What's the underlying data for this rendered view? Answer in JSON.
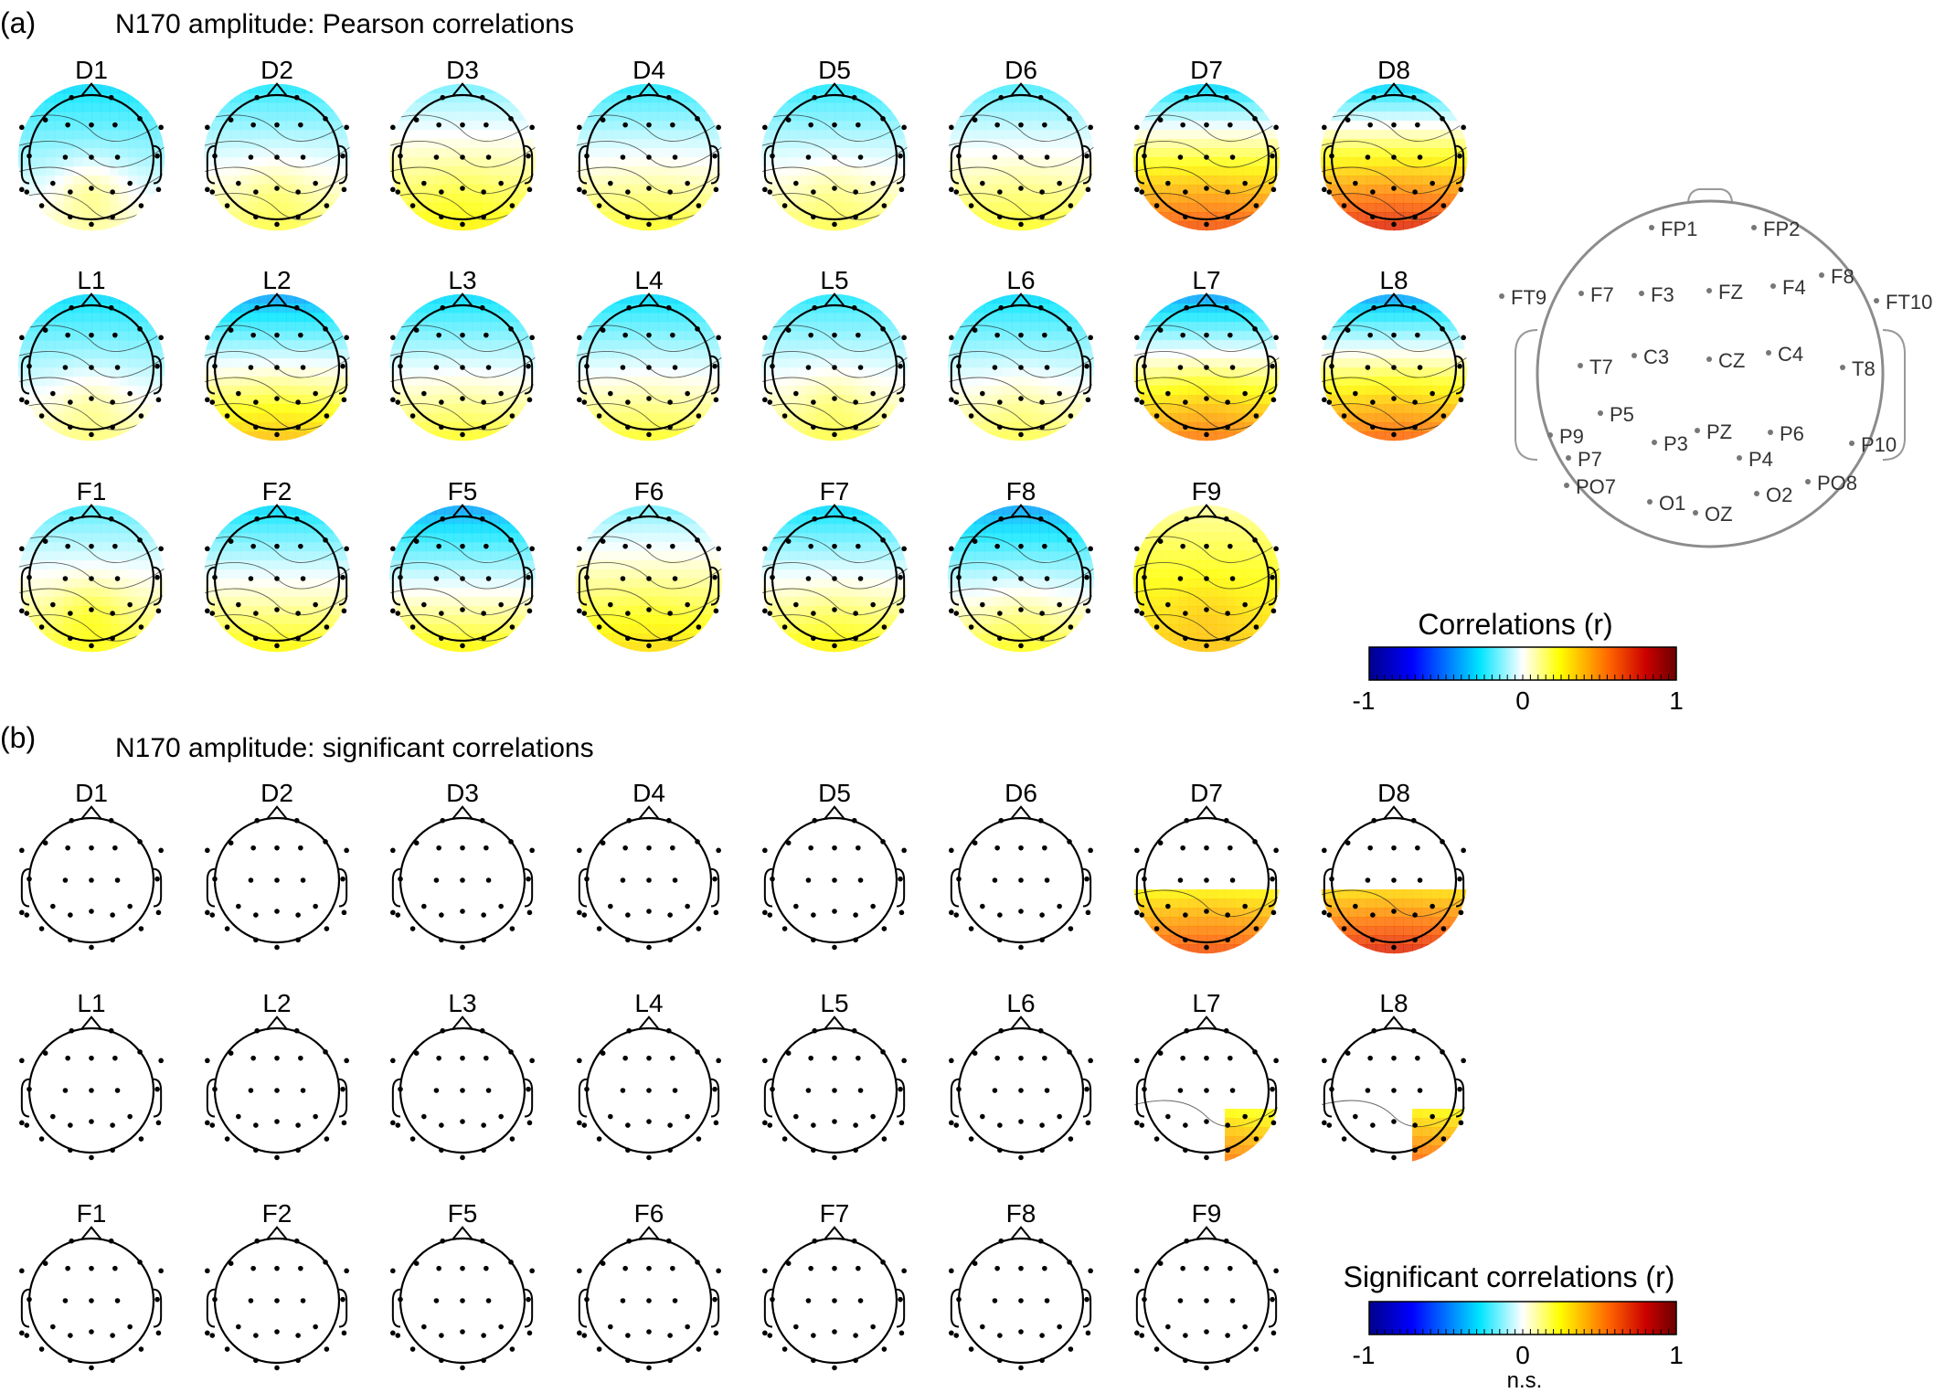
{
  "figure": {
    "panels": [
      {
        "id": "a",
        "label": "(a)",
        "title": "N170 amplitude: Pearson correlations",
        "rows": [
          [
            "D1",
            "D2",
            "D3",
            "D4",
            "D5",
            "D6",
            "D7",
            "D8"
          ],
          [
            "L1",
            "L2",
            "L3",
            "L4",
            "L5",
            "L6",
            "L7",
            "L8"
          ],
          [
            "F1",
            "F2",
            "F5",
            "F6",
            "F7",
            "F8",
            "F9"
          ]
        ]
      },
      {
        "id": "b",
        "label": "(b)",
        "title": "N170 amplitude: significant correlations",
        "rows": [
          [
            "D1",
            "D2",
            "D3",
            "D4",
            "D5",
            "D6",
            "D7",
            "D8"
          ],
          [
            "L1",
            "L2",
            "L3",
            "L4",
            "L5",
            "L6",
            "L7",
            "L8"
          ],
          [
            "F1",
            "F2",
            "F5",
            "F6",
            "F7",
            "F8",
            "F9"
          ]
        ]
      }
    ],
    "colorbar_a": {
      "title": "Correlations (r)",
      "ticks": [
        "-1",
        "0",
        "1"
      ]
    },
    "colorbar_b": {
      "title": "Significant correlations (r)",
      "ticks": [
        "-1",
        "0",
        "1"
      ],
      "ns_label": "n.s."
    },
    "electrode_layout": {
      "labels": [
        "FP1",
        "FP2",
        "F8",
        "FT10",
        "T8",
        "P10",
        "PO8",
        "O2",
        "OZ",
        "O1",
        "PO7",
        "P7",
        "P9",
        "T7",
        "FT9",
        "F7",
        "F3",
        "FZ",
        "F4",
        "C3",
        "CZ",
        "C4",
        "P5",
        "P3",
        "PZ",
        "P4",
        "P6"
      ]
    }
  },
  "chart_data": {
    "type": "heatmap",
    "description_scale": "topographic scalp maps of Pearson correlation (r) with N170 amplitude; colormap -1 (blue) to 0 (white) to 1 (dark red)",
    "color_scale": {
      "min": -1,
      "mid": 0,
      "max": 1,
      "colors": [
        "#00008b",
        "#0000ff",
        "#00e5ff",
        "#ffffff",
        "#ffff00",
        "#ff6600",
        "#cc0000",
        "#6b0000"
      ]
    },
    "maps": [
      {
        "name": "D1",
        "frontal": -0.3,
        "posterior": 0.05,
        "peak": 0.18,
        "sig_posterior": false,
        "sig_right": false
      },
      {
        "name": "D2",
        "frontal": -0.25,
        "posterior": 0.15,
        "peak": 0.22,
        "sig_posterior": false,
        "sig_right": false
      },
      {
        "name": "D3",
        "frontal": -0.15,
        "posterior": 0.25,
        "peak": 0.28,
        "sig_posterior": false,
        "sig_right": false
      },
      {
        "name": "D4",
        "frontal": -0.25,
        "posterior": 0.2,
        "peak": 0.22,
        "sig_posterior": false,
        "sig_right": false
      },
      {
        "name": "D5",
        "frontal": -0.25,
        "posterior": 0.15,
        "peak": 0.2,
        "sig_posterior": false,
        "sig_right": false
      },
      {
        "name": "D6",
        "frontal": -0.2,
        "posterior": 0.2,
        "peak": 0.22,
        "sig_posterior": false,
        "sig_right": false
      },
      {
        "name": "D7",
        "frontal": -0.3,
        "posterior": 0.6,
        "peak": 0.62,
        "sig_posterior": true,
        "sig_right": false
      },
      {
        "name": "D8",
        "frontal": -0.3,
        "posterior": 0.7,
        "peak": 0.72,
        "sig_posterior": true,
        "sig_right": false
      },
      {
        "name": "L1",
        "frontal": -0.3,
        "posterior": 0.1,
        "peak": 0.18,
        "sig_posterior": false,
        "sig_right": false
      },
      {
        "name": "L2",
        "frontal": -0.4,
        "posterior": 0.35,
        "peak": 0.38,
        "sig_posterior": false,
        "sig_right": false
      },
      {
        "name": "L3",
        "frontal": -0.3,
        "posterior": 0.2,
        "peak": 0.22,
        "sig_posterior": false,
        "sig_right": false
      },
      {
        "name": "L4",
        "frontal": -0.3,
        "posterior": 0.2,
        "peak": 0.22,
        "sig_posterior": false,
        "sig_right": false
      },
      {
        "name": "L5",
        "frontal": -0.25,
        "posterior": 0.15,
        "peak": 0.22,
        "sig_posterior": false,
        "sig_right": false
      },
      {
        "name": "L6",
        "frontal": -0.3,
        "posterior": 0.15,
        "peak": 0.2,
        "sig_posterior": false,
        "sig_right": false
      },
      {
        "name": "L7",
        "frontal": -0.4,
        "posterior": 0.5,
        "peak": 0.55,
        "sig_posterior": false,
        "sig_right": true
      },
      {
        "name": "L8",
        "frontal": -0.4,
        "posterior": 0.55,
        "peak": 0.58,
        "sig_posterior": false,
        "sig_right": true
      },
      {
        "name": "F1",
        "frontal": -0.2,
        "posterior": 0.2,
        "peak": 0.3,
        "sig_posterior": false,
        "sig_right": false
      },
      {
        "name": "F2",
        "frontal": -0.3,
        "posterior": 0.25,
        "peak": 0.25,
        "sig_posterior": false,
        "sig_right": false
      },
      {
        "name": "F5",
        "frontal": -0.4,
        "posterior": 0.25,
        "peak": 0.25,
        "sig_posterior": false,
        "sig_right": false
      },
      {
        "name": "F6",
        "frontal": -0.15,
        "posterior": 0.3,
        "peak": 0.32,
        "sig_posterior": false,
        "sig_right": false
      },
      {
        "name": "F7",
        "frontal": -0.3,
        "posterior": 0.25,
        "peak": 0.28,
        "sig_posterior": false,
        "sig_right": false
      },
      {
        "name": "F8",
        "frontal": -0.4,
        "posterior": 0.2,
        "peak": 0.25,
        "sig_posterior": false,
        "sig_right": false
      },
      {
        "name": "F9",
        "frontal": 0.1,
        "posterior": 0.35,
        "peak": 0.4,
        "sig_posterior": false,
        "sig_right": false
      }
    ]
  }
}
